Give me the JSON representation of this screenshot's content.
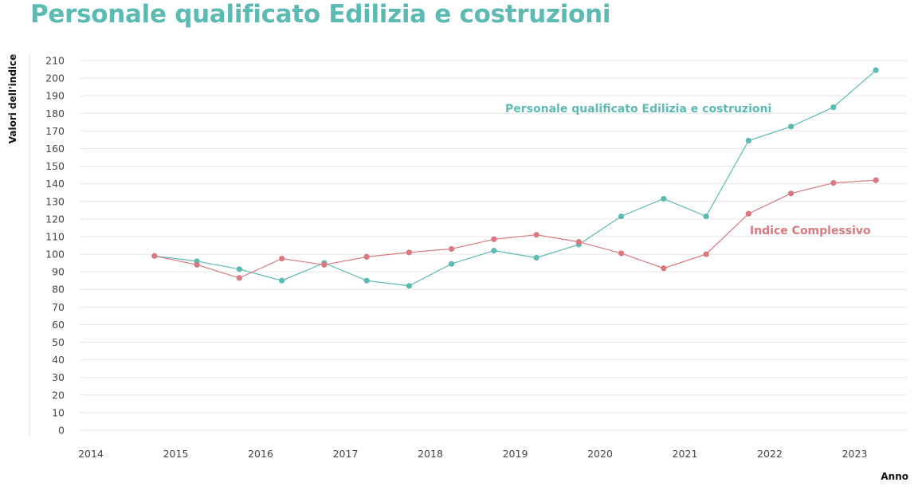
{
  "chart_data": {
    "type": "line",
    "title": "Personale qualificato Edilizia e costruzioni",
    "xlabel": "Anno",
    "ylabel": "Valori dell'indice",
    "xlim": [
      2014,
      2023.6
    ],
    "ylim": [
      0,
      210
    ],
    "x_ticks": [
      "2014",
      "2015",
      "2016",
      "2017",
      "2018",
      "2019",
      "2020",
      "2021",
      "2022",
      "2023"
    ],
    "y_ticks": [
      0,
      10,
      20,
      30,
      40,
      50,
      60,
      70,
      80,
      90,
      100,
      110,
      120,
      130,
      140,
      150,
      160,
      170,
      180,
      190,
      200,
      210
    ],
    "grid": "horizontal",
    "x": [
      2014.75,
      2015.25,
      2015.75,
      2016.25,
      2016.75,
      2017.25,
      2017.75,
      2018.25,
      2018.75,
      2019.25,
      2019.75,
      2020.25,
      2020.75,
      2021.25,
      2021.75,
      2022.25,
      2022.75,
      2023.25
    ],
    "series": [
      {
        "name": "Personale qualificato Edilizia e costruzioni",
        "color": "#5bbab2",
        "values": [
          99,
          96,
          91.5,
          85,
          95,
          85,
          82,
          94.5,
          102,
          98,
          105.5,
          121.5,
          131.5,
          121.5,
          164.5,
          172.5,
          183.5,
          204.5
        ]
      },
      {
        "name": "Indice Complessivo",
        "color": "#d9787f",
        "values": [
          99,
          94,
          86.5,
          97.5,
          94,
          98.5,
          101,
          103,
          108.5,
          111,
          107,
          100.5,
          92,
          100,
          123,
          134.5,
          140.5,
          142
        ]
      }
    ]
  }
}
